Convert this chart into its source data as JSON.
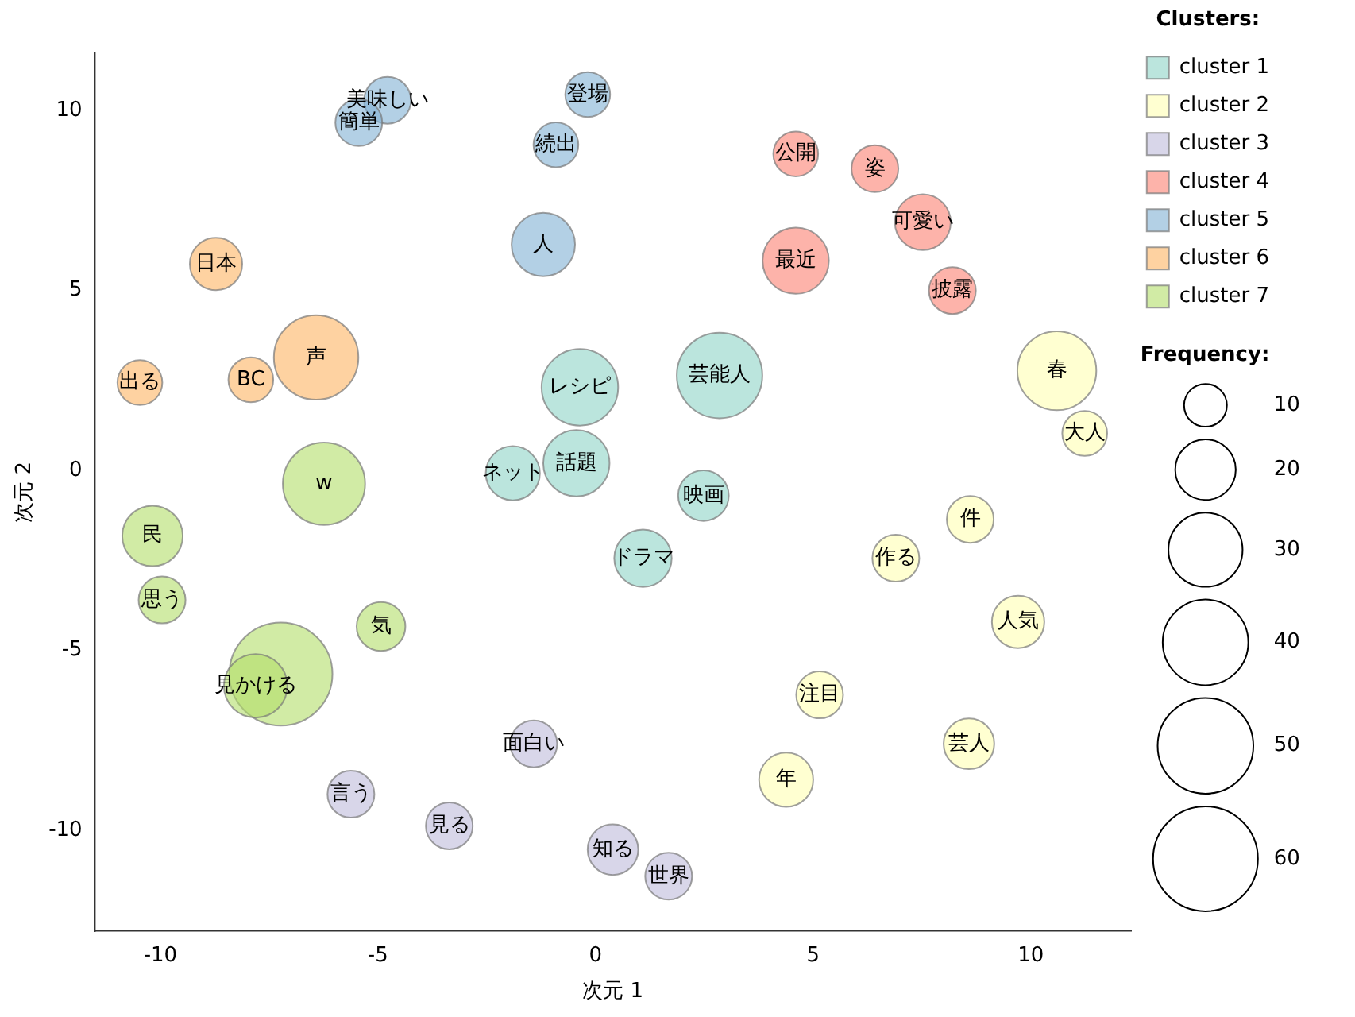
{
  "chart_data": {
    "type": "bubble",
    "xlabel": "次元 1",
    "ylabel": "次元 2",
    "legend_title": "Clusters:",
    "legend": "right",
    "grid": false,
    "xlim": [
      -11.5,
      12.3
    ],
    "xticks": [
      -10,
      -5,
      0,
      5,
      10
    ],
    "ylim": [
      -12.8,
      11.6
    ],
    "yticks": [
      -10,
      -5,
      0,
      5,
      10
    ],
    "size_legend": [
      10,
      20,
      30,
      40,
      50,
      60
    ],
    "series": [
      {
        "name": "cluster 1",
        "color": "#8dd3c7",
        "x": [
          -0.36,
          2.85,
          -0.44,
          -1.9,
          2.48,
          1.09
        ],
        "values": [
          2.31,
          2.64,
          0.2,
          -0.08,
          -0.7,
          -2.44
        ],
        "sizes": [
          32,
          40,
          24,
          16,
          14,
          18
        ]
      },
      {
        "name": "cluster 2",
        "color": "#ffffb3",
        "x": [
          10.6,
          11.24,
          8.61,
          6.9,
          9.71,
          5.15,
          8.58,
          4.38
        ],
        "values": [
          2.77,
          1.03,
          -1.36,
          -2.44,
          -4.21,
          -6.24,
          -7.6,
          -8.6
        ],
        "sizes": [
          34,
          11,
          12,
          12,
          15,
          12,
          14,
          16
        ]
      },
      {
        "name": "cluster 3",
        "color": "#bebada",
        "x": [
          -1.42,
          -5.62,
          -3.36,
          0.4,
          1.68
        ],
        "values": [
          -7.6,
          -9.0,
          -9.88,
          -10.54,
          -11.28
        ],
        "sizes": [
          12,
          12,
          12,
          14,
          12
        ]
      },
      {
        "name": "cluster 4",
        "color": "#fb8072",
        "x": [
          4.6,
          6.42,
          7.52,
          4.6,
          8.2
        ],
        "values": [
          8.8,
          8.39,
          6.9,
          5.83,
          5.0
        ],
        "sizes": [
          11,
          12,
          17,
          24,
          12
        ]
      },
      {
        "name": "cluster 5",
        "color": "#80b1d3",
        "x": [
          -0.18,
          -4.78,
          -5.44,
          -0.91,
          -1.2
        ],
        "values": [
          10.45,
          10.29,
          9.67,
          9.05,
          6.28
        ],
        "sizes": [
          11,
          12,
          12,
          11,
          22
        ]
      },
      {
        "name": "cluster 6",
        "color": "#fdb462",
        "x": [
          -8.72,
          -10.47,
          -7.92,
          -6.42
        ],
        "values": [
          5.74,
          2.44,
          2.52,
          3.14
        ],
        "sizes": [
          15,
          11,
          11,
          39
        ]
      },
      {
        "name": "cluster 7",
        "color": "#b3de69",
        "x": [
          -6.24,
          -10.18,
          -9.96,
          -4.93,
          -7.23,
          -7.81
        ],
        "values": [
          -0.37,
          -1.82,
          -3.6,
          -4.34,
          -5.66,
          -5.99
        ],
        "sizes": [
          37,
          20,
          12,
          13,
          58,
          22
        ]
      }
    ],
    "annotations": [
      "Frequency:",
      {
        "text": "レシピ",
        "x": -0.36,
        "y": 2.31
      },
      {
        "text": "芸能人",
        "x": 2.85,
        "y": 2.64
      },
      {
        "text": "話題",
        "x": -0.44,
        "y": 0.2
      },
      {
        "text": "ネット",
        "x": -1.9,
        "y": -0.08
      },
      {
        "text": "映画",
        "x": 2.48,
        "y": -0.7
      },
      {
        "text": "ドラマ",
        "x": 1.09,
        "y": -2.44
      },
      {
        "text": "春",
        "x": 10.6,
        "y": 2.77
      },
      {
        "text": "大人",
        "x": 11.24,
        "y": 1.03
      },
      {
        "text": "件",
        "x": 8.61,
        "y": -1.36
      },
      {
        "text": "作る",
        "x": 6.9,
        "y": -2.44
      },
      {
        "text": "人気",
        "x": 9.71,
        "y": -4.21
      },
      {
        "text": "注目",
        "x": 5.15,
        "y": -6.24
      },
      {
        "text": "芸人",
        "x": 8.58,
        "y": -7.6
      },
      {
        "text": "年",
        "x": 4.38,
        "y": -8.6
      },
      {
        "text": "面白い",
        "x": -1.42,
        "y": -7.6
      },
      {
        "text": "言う",
        "x": -5.62,
        "y": -9.0
      },
      {
        "text": "見る",
        "x": -3.36,
        "y": -9.88
      },
      {
        "text": "知る",
        "x": 0.4,
        "y": -10.54
      },
      {
        "text": "世界",
        "x": 1.68,
        "y": -11.28
      },
      {
        "text": "公開",
        "x": 4.6,
        "y": 8.8
      },
      {
        "text": "姿",
        "x": 6.42,
        "y": 8.39
      },
      {
        "text": "可愛い",
        "x": 7.52,
        "y": 6.9
      },
      {
        "text": "最近",
        "x": 4.6,
        "y": 5.83
      },
      {
        "text": "披露",
        "x": 8.2,
        "y": 5.0
      },
      {
        "text": "登場",
        "x": -0.18,
        "y": 10.45
      },
      {
        "text": "美味しい",
        "x": -4.78,
        "y": 10.29
      },
      {
        "text": "簡単",
        "x": -5.44,
        "y": 9.67
      },
      {
        "text": "続出",
        "x": -0.91,
        "y": 9.05
      },
      {
        "text": "人",
        "x": -1.2,
        "y": 6.28
      },
      {
        "text": "日本",
        "x": -8.72,
        "y": 5.74
      },
      {
        "text": "出る",
        "x": -10.47,
        "y": 2.44
      },
      {
        "text": "BC",
        "x": -7.92,
        "y": 2.52
      },
      {
        "text": "声",
        "x": -6.42,
        "y": 3.14
      },
      {
        "text": "w",
        "x": -6.24,
        "y": -0.37
      },
      {
        "text": "民",
        "x": -10.18,
        "y": -1.82
      },
      {
        "text": "思う",
        "x": -9.96,
        "y": -3.6
      },
      {
        "text": "気",
        "x": -4.93,
        "y": -4.34
      },
      {
        "text": "見かける",
        "x": -7.81,
        "y": -5.99
      }
    ]
  }
}
